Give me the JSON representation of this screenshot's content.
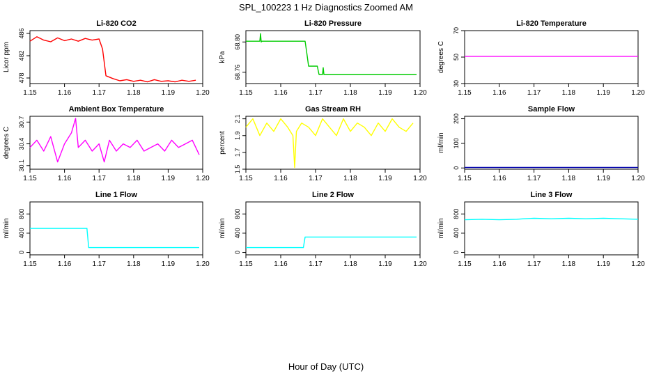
{
  "figure": {
    "title": "SPL_100223  1 Hz Diagnostics Zoomed AM",
    "xlabel": "Hour of Day (UTC)"
  },
  "chart_data": [
    {
      "type": "line",
      "title": "Li-820 CO2",
      "ylabel": "Licor ppm",
      "xlim": [
        1.15,
        1.2
      ],
      "ylim": [
        477,
        486.5
      ],
      "xticks": [
        "1.15",
        "1.16",
        "1.17",
        "1.18",
        "1.19",
        "1.20"
      ],
      "yticks": [
        "478",
        "482",
        "486"
      ],
      "color": "#ff0000",
      "series": [
        {
          "name": "CO2",
          "x": [
            1.15,
            1.152,
            1.154,
            1.156,
            1.158,
            1.16,
            1.162,
            1.164,
            1.166,
            1.168,
            1.17,
            1.171,
            1.172,
            1.174,
            1.176,
            1.178,
            1.18,
            1.182,
            1.184,
            1.186,
            1.188,
            1.19,
            1.192,
            1.194,
            1.196,
            1.198
          ],
          "y": [
            484.6,
            485.4,
            484.8,
            484.5,
            485.2,
            484.7,
            485.0,
            484.6,
            485.1,
            484.8,
            485.0,
            483.2,
            478.4,
            477.9,
            477.5,
            477.7,
            477.4,
            477.6,
            477.3,
            477.7,
            477.4,
            477.5,
            477.3,
            477.6,
            477.4,
            477.6
          ]
        }
      ]
    },
    {
      "type": "line",
      "title": "Li-820 Pressure",
      "ylabel": "kPa",
      "xlim": [
        1.15,
        1.2
      ],
      "ylim": [
        68.745,
        68.815
      ],
      "xticks": [
        "1.15",
        "1.16",
        "1.17",
        "1.18",
        "1.19",
        "1.20"
      ],
      "yticks": [
        "68.76",
        "68.80"
      ],
      "color": "#00cc00",
      "series": [
        {
          "name": "Pressure",
          "x": [
            1.15,
            1.154,
            1.1542,
            1.1544,
            1.1546,
            1.16,
            1.167,
            1.1675,
            1.168,
            1.169,
            1.1705,
            1.171,
            1.172,
            1.1722,
            1.1724,
            1.175,
            1.199
          ],
          "y": [
            68.801,
            68.801,
            68.811,
            68.8,
            68.801,
            68.801,
            68.801,
            68.785,
            68.768,
            68.768,
            68.768,
            68.757,
            68.757,
            68.766,
            68.757,
            68.757,
            68.757
          ]
        }
      ]
    },
    {
      "type": "line",
      "title": "Li-820 Temperature",
      "ylabel": "degrees C",
      "xlim": [
        1.15,
        1.2
      ],
      "ylim": [
        30,
        70
      ],
      "xticks": [
        "1.15",
        "1.16",
        "1.17",
        "1.18",
        "1.19",
        "1.20"
      ],
      "yticks": [
        "30",
        "50",
        "70"
      ],
      "color": "#ff00ff",
      "series": [
        {
          "name": "Temperature",
          "x": [
            1.15,
            1.2
          ],
          "y": [
            50.6,
            50.6
          ]
        }
      ]
    },
    {
      "type": "line",
      "title": "Ambient Box Temperature",
      "ylabel": "degrees C",
      "xlim": [
        1.15,
        1.2
      ],
      "ylim": [
        30.05,
        30.78
      ],
      "xticks": [
        "1.15",
        "1.16",
        "1.17",
        "1.18",
        "1.19",
        "1.20"
      ],
      "yticks": [
        "30.1",
        "30.4",
        "30.7"
      ],
      "color": "#ff00ff",
      "series": [
        {
          "name": "Box Temperature",
          "x": [
            1.15,
            1.152,
            1.154,
            1.156,
            1.158,
            1.16,
            1.162,
            1.1632,
            1.164,
            1.166,
            1.168,
            1.17,
            1.1715,
            1.173,
            1.175,
            1.177,
            1.179,
            1.181,
            1.183,
            1.185,
            1.187,
            1.189,
            1.191,
            1.193,
            1.195,
            1.197,
            1.199
          ],
          "y": [
            30.35,
            30.45,
            30.3,
            30.5,
            30.15,
            30.4,
            30.55,
            30.75,
            30.35,
            30.45,
            30.3,
            30.4,
            30.15,
            30.45,
            30.3,
            30.4,
            30.35,
            30.45,
            30.3,
            30.35,
            30.4,
            30.3,
            30.45,
            30.35,
            30.4,
            30.45,
            30.25
          ]
        }
      ]
    },
    {
      "type": "line",
      "title": "Gas Stream RH",
      "ylabel": "percent",
      "xlim": [
        1.15,
        1.2
      ],
      "ylim": [
        1.5,
        2.13
      ],
      "xticks": [
        "1.15",
        "1.16",
        "1.17",
        "1.18",
        "1.19",
        "1.20"
      ],
      "yticks": [
        "1.5",
        "1.7",
        "1.9",
        "2.1"
      ],
      "color": "#ffff00",
      "series": [
        {
          "name": "RH",
          "x": [
            1.15,
            1.152,
            1.154,
            1.156,
            1.158,
            1.16,
            1.162,
            1.1635,
            1.164,
            1.1645,
            1.166,
            1.168,
            1.17,
            1.172,
            1.174,
            1.176,
            1.178,
            1.18,
            1.182,
            1.184,
            1.186,
            1.188,
            1.19,
            1.192,
            1.194,
            1.196,
            1.198
          ],
          "y": [
            2.0,
            2.1,
            1.9,
            2.05,
            1.95,
            2.1,
            2.0,
            1.9,
            1.52,
            1.95,
            2.05,
            2.0,
            1.9,
            2.1,
            2.0,
            1.9,
            2.1,
            1.95,
            2.05,
            2.0,
            1.9,
            2.05,
            1.95,
            2.1,
            2.0,
            1.95,
            2.05
          ]
        }
      ]
    },
    {
      "type": "line",
      "title": "Sample Flow",
      "ylabel": "ml/min",
      "xlim": [
        1.15,
        1.2
      ],
      "ylim": [
        -5,
        210
      ],
      "xticks": [
        "1.15",
        "1.16",
        "1.17",
        "1.18",
        "1.19",
        "1.20"
      ],
      "yticks": [
        "0",
        "100",
        "200"
      ],
      "color": "#0000aa",
      "series": [
        {
          "name": "Sample Flow",
          "x": [
            1.15,
            1.16,
            1.17,
            1.18,
            1.19,
            1.2
          ],
          "y": [
            2,
            2,
            2,
            2,
            2,
            2
          ]
        }
      ]
    },
    {
      "type": "line",
      "title": "Line 1 Flow",
      "ylabel": "ml/min",
      "xlim": [
        1.15,
        1.2
      ],
      "ylim": [
        -50,
        1050
      ],
      "xticks": [
        "1.15",
        "1.16",
        "1.17",
        "1.18",
        "1.19",
        "1.20"
      ],
      "yticks": [
        "0",
        "400",
        "800"
      ],
      "color": "#00ffff",
      "series": [
        {
          "name": "Line 1 Flow",
          "x": [
            1.15,
            1.155,
            1.16,
            1.165,
            1.1665,
            1.167,
            1.17,
            1.18,
            1.19,
            1.199
          ],
          "y": [
            500,
            500,
            500,
            500,
            500,
            100,
            100,
            100,
            100,
            100
          ]
        }
      ]
    },
    {
      "type": "line",
      "title": "Line 2 Flow",
      "ylabel": "ml/min",
      "xlim": [
        1.15,
        1.2
      ],
      "ylim": [
        -50,
        1050
      ],
      "xticks": [
        "1.15",
        "1.16",
        "1.17",
        "1.18",
        "1.19",
        "1.20"
      ],
      "yticks": [
        "0",
        "400",
        "800"
      ],
      "color": "#00ffff",
      "series": [
        {
          "name": "Line 2 Flow",
          "x": [
            1.15,
            1.155,
            1.16,
            1.165,
            1.1665,
            1.167,
            1.17,
            1.18,
            1.19,
            1.199
          ],
          "y": [
            100,
            100,
            100,
            100,
            100,
            320,
            320,
            320,
            320,
            320
          ]
        }
      ]
    },
    {
      "type": "line",
      "title": "Line 3 Flow",
      "ylabel": "ml/min",
      "xlim": [
        1.15,
        1.2
      ],
      "ylim": [
        -50,
        1050
      ],
      "xticks": [
        "1.15",
        "1.16",
        "1.17",
        "1.18",
        "1.19",
        "1.20"
      ],
      "yticks": [
        "0",
        "400",
        "800"
      ],
      "color": "#00ffff",
      "series": [
        {
          "name": "Line 3 Flow",
          "x": [
            1.15,
            1.155,
            1.16,
            1.165,
            1.167,
            1.17,
            1.175,
            1.18,
            1.185,
            1.19,
            1.195,
            1.2
          ],
          "y": [
            680,
            690,
            680,
            690,
            700,
            710,
            700,
            710,
            700,
            710,
            700,
            690
          ]
        }
      ]
    }
  ]
}
